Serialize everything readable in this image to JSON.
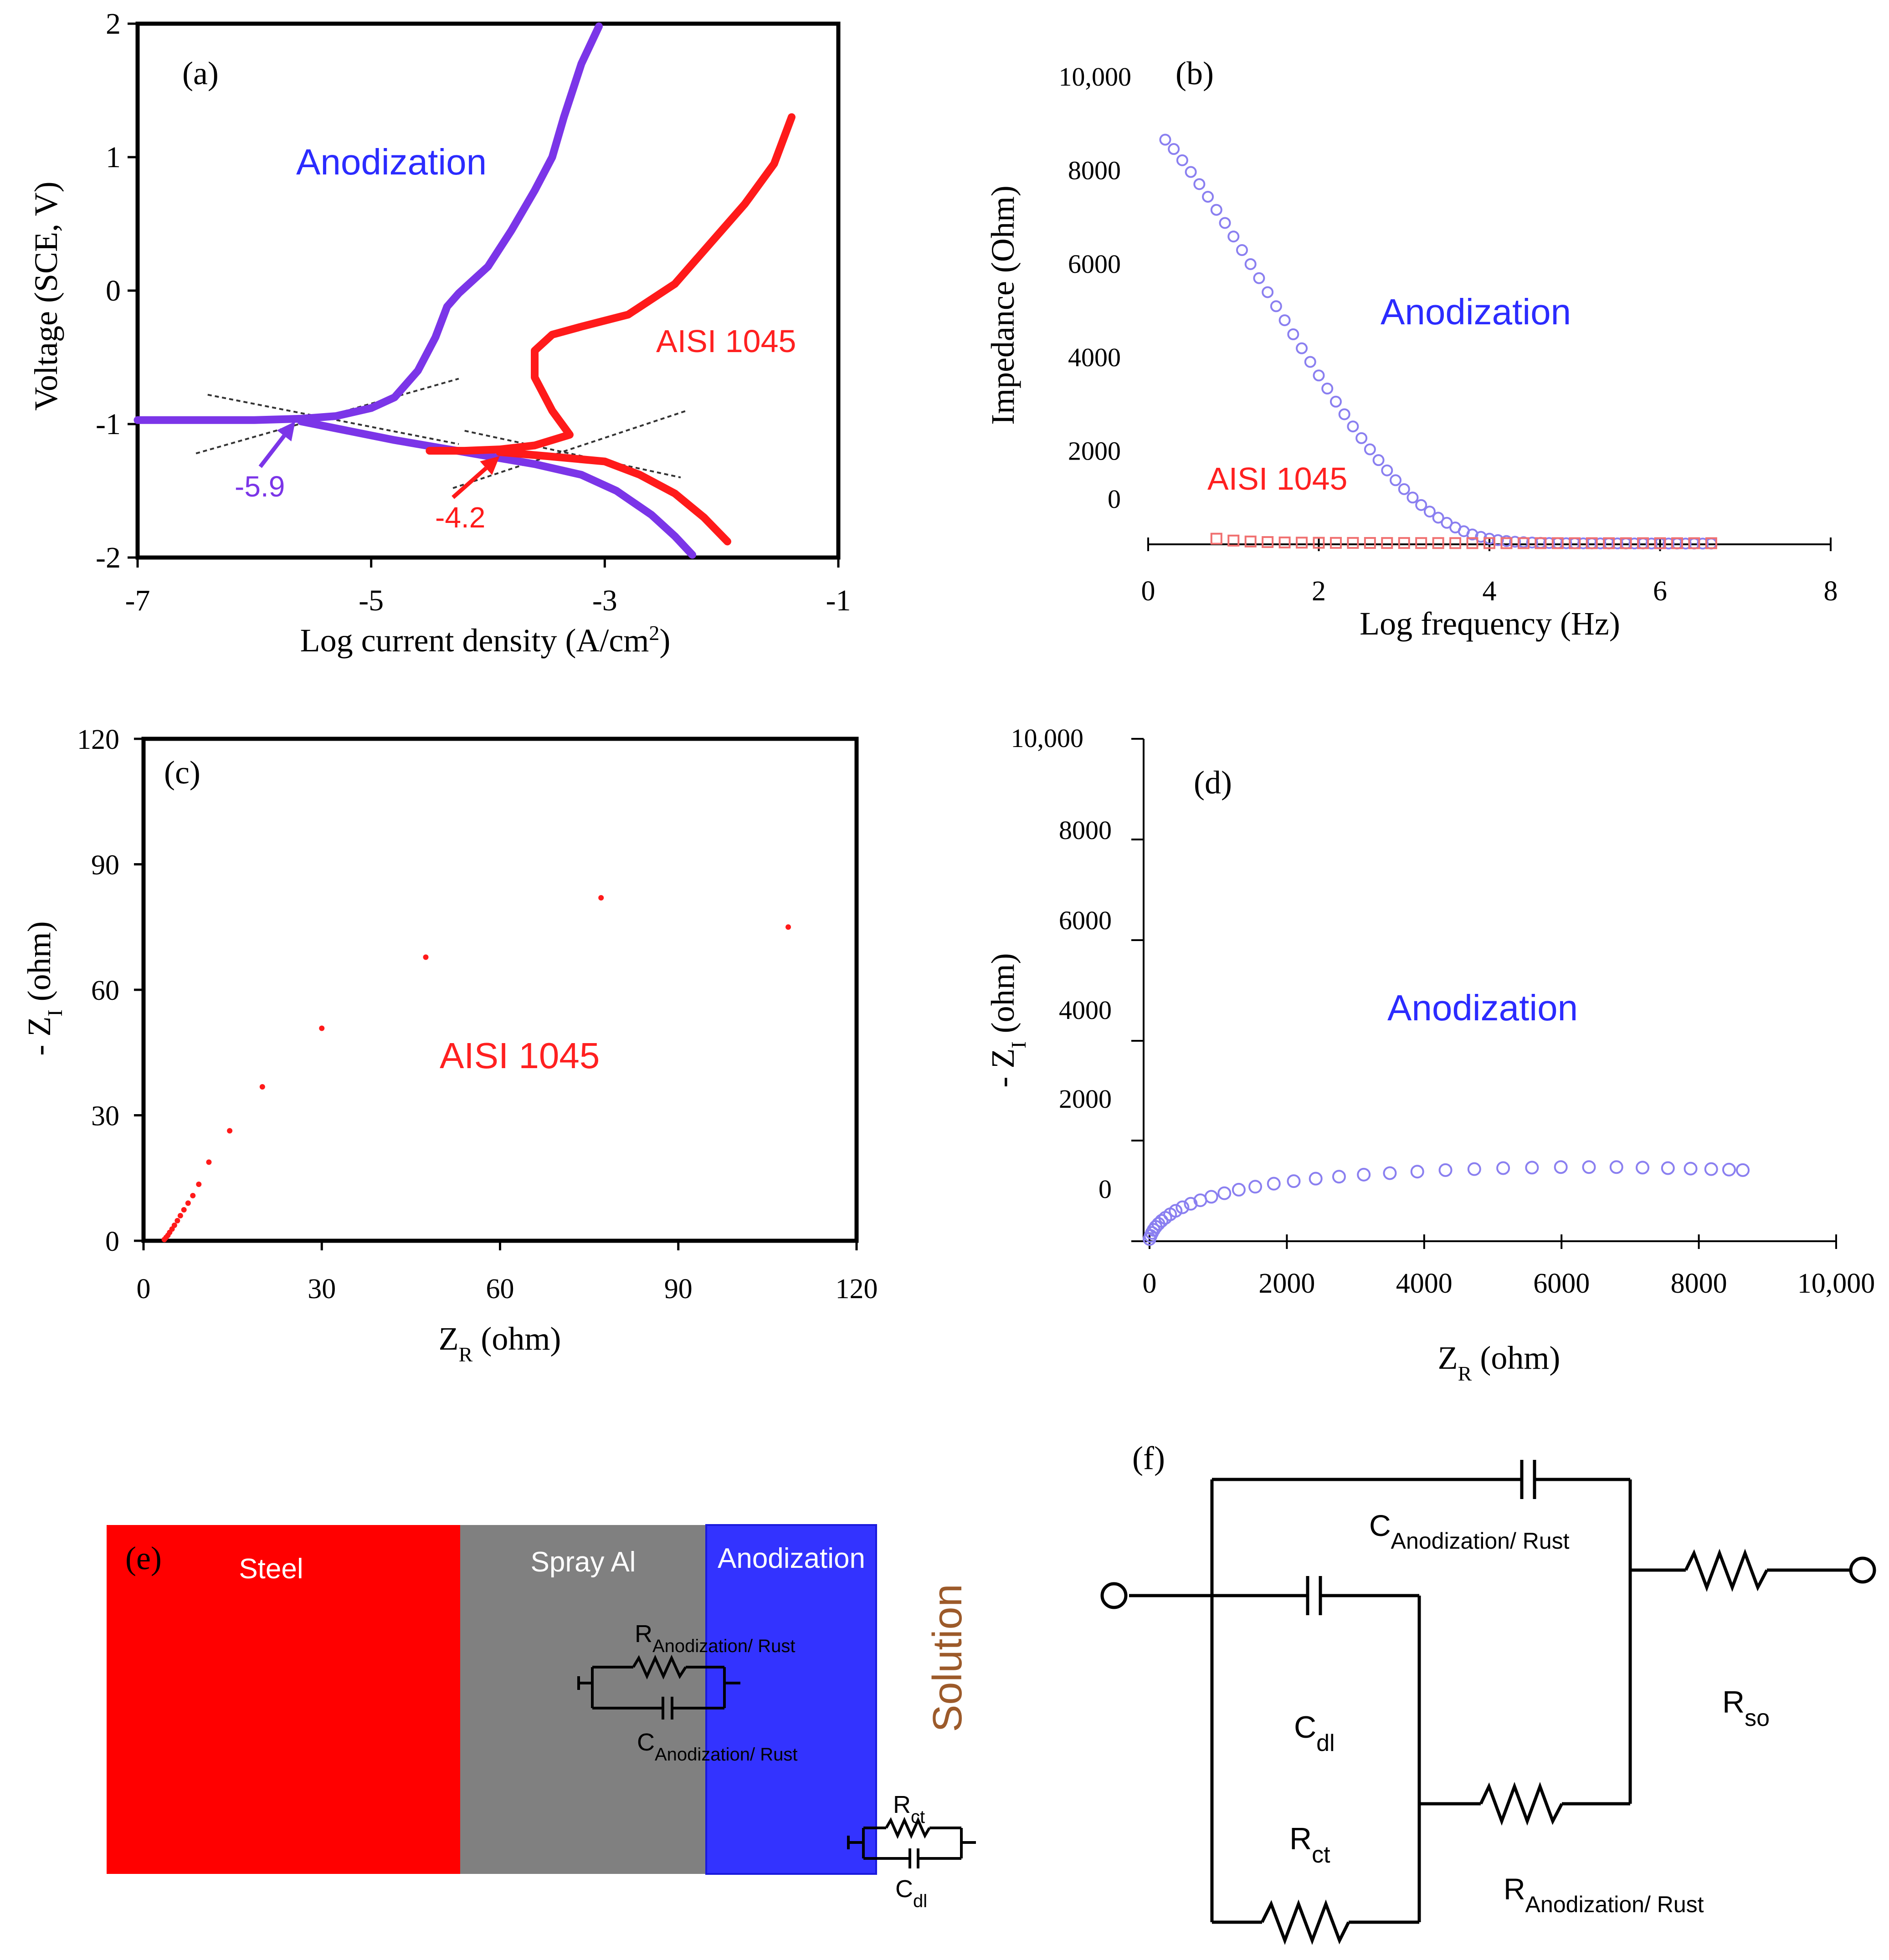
{
  "colors": {
    "anodization_curve": "#7b35e8",
    "aisi_curve": "#ff1a1a",
    "anodization_text": "#2b2bff",
    "aisi_text": "#ff2020",
    "impedance_anod_marker": "#8a7ff0",
    "impedance_aisi_marker": "#f07070",
    "steel": "#ff0000",
    "spray_al": "#808080",
    "anodization_layer": "#3333ff",
    "solution_text": "#9c5a2a"
  },
  "chart_data": [
    {
      "panel": "(a)",
      "type": "line",
      "xlabel": "Log current density (A/cm",
      "xlabel_sup": "2",
      "xlabel_end": ")",
      "ylabel": "Voltage (SCE, V)",
      "xlim": [
        -7,
        -1
      ],
      "ylim": [
        -2,
        2
      ],
      "xticks": [
        "-7",
        "-5",
        "-3",
        "-1"
      ],
      "yticks": [
        "2",
        "1",
        "0",
        "-1",
        "-2"
      ],
      "series": [
        {
          "name": "Anodization",
          "color_key": "anodization_curve",
          "points": [
            [
              -7.0,
              -0.97
            ],
            [
              -6.5,
              -0.97
            ],
            [
              -6.0,
              -0.97
            ],
            [
              -5.6,
              -0.96
            ],
            [
              -5.3,
              -0.94
            ],
            [
              -5.0,
              -0.88
            ],
            [
              -4.8,
              -0.8
            ],
            [
              -4.6,
              -0.6
            ],
            [
              -4.45,
              -0.35
            ],
            [
              -4.35,
              -0.12
            ],
            [
              -4.25,
              -0.02
            ],
            [
              -4.0,
              0.18
            ],
            [
              -3.8,
              0.45
            ],
            [
              -3.6,
              0.75
            ],
            [
              -3.45,
              1.0
            ],
            [
              -3.35,
              1.3
            ],
            [
              -3.2,
              1.7
            ],
            [
              -3.05,
              1.98
            ]
          ]
        },
        {
          "name": "Anodization cathodic",
          "color_key": "anodization_curve",
          "points": [
            [
              -5.6,
              -0.98
            ],
            [
              -5.2,
              -1.05
            ],
            [
              -4.8,
              -1.12
            ],
            [
              -4.4,
              -1.18
            ],
            [
              -4.0,
              -1.24
            ],
            [
              -3.6,
              -1.3
            ],
            [
              -3.2,
              -1.38
            ],
            [
              -2.9,
              -1.5
            ],
            [
              -2.6,
              -1.68
            ],
            [
              -2.4,
              -1.84
            ],
            [
              -2.25,
              -1.98
            ]
          ]
        },
        {
          "name": "AISI 1045",
          "color_key": "aisi_curve",
          "points": [
            [
              -4.5,
              -1.2
            ],
            [
              -4.2,
              -1.2
            ],
            [
              -3.9,
              -1.19
            ],
            [
              -3.6,
              -1.16
            ],
            [
              -3.3,
              -1.08
            ],
            [
              -3.45,
              -0.9
            ],
            [
              -3.6,
              -0.65
            ],
            [
              -3.6,
              -0.45
            ],
            [
              -3.45,
              -0.33
            ],
            [
              -3.2,
              -0.27
            ],
            [
              -2.8,
              -0.18
            ],
            [
              -2.4,
              0.05
            ],
            [
              -2.1,
              0.35
            ],
            [
              -1.8,
              0.65
            ],
            [
              -1.55,
              0.95
            ],
            [
              -1.4,
              1.3
            ]
          ]
        },
        {
          "name": "AISI 1045 cathodic",
          "color_key": "aisi_curve",
          "points": [
            [
              -3.9,
              -1.21
            ],
            [
              -3.5,
              -1.24
            ],
            [
              -3.0,
              -1.28
            ],
            [
              -2.7,
              -1.38
            ],
            [
              -2.4,
              -1.52
            ],
            [
              -2.15,
              -1.7
            ],
            [
              -1.95,
              -1.88
            ]
          ]
        }
      ],
      "tangents": [
        [
          [
            -6.4,
            -0.78
          ],
          [
            -4.25,
            -1.15
          ]
        ],
        [
          [
            -6.5,
            -1.22
          ],
          [
            -4.25,
            -0.66
          ]
        ],
        [
          [
            -4.2,
            -1.05
          ],
          [
            -2.35,
            -1.4
          ]
        ],
        [
          [
            -4.3,
            -1.48
          ],
          [
            -2.3,
            -0.9
          ]
        ]
      ],
      "annotations": [
        {
          "text": "Anodization",
          "color_key": "anodization_text",
          "x": -4.7,
          "y": 1.0
        },
        {
          "text": "AISI 1045",
          "color_key": "aisi_text",
          "x": -2.5,
          "y": -0.4
        },
        {
          "text": "-5.9",
          "color_key": "anodization_curve",
          "x": -6.1,
          "y": -1.48
        },
        {
          "text": "-4.2",
          "color_key": "aisi_text",
          "x": -4.2,
          "y": -1.7
        },
        {
          "text": "(a)",
          "x": -6.55,
          "y": 1.64
        }
      ],
      "arrows": [
        {
          "from": [
            -5.95,
            -1.32
          ],
          "to": [
            -5.65,
            -0.98
          ],
          "color_key": "anodization_curve"
        },
        {
          "from": [
            -4.3,
            -1.55
          ],
          "to": [
            -3.9,
            -1.24
          ],
          "color_key": "aisi_curve"
        }
      ]
    },
    {
      "panel": "(b)",
      "type": "scatter",
      "xlabel": "Log frequency (Hz)",
      "ylabel": "Impedance (Ohm)",
      "xlim": [
        0,
        8
      ],
      "ylim": [
        -300,
        10500
      ],
      "xticks": [
        "0",
        "2",
        "4",
        "6",
        "8"
      ],
      "yticks": [
        "10,000",
        "8000",
        "6000",
        "4000",
        "2000",
        "0"
      ],
      "series": [
        {
          "name": "Anodization",
          "marker": "circle",
          "color_key": "impedance_anod_marker",
          "x": [
            0.2,
            0.3,
            0.4,
            0.5,
            0.6,
            0.7,
            0.8,
            0.9,
            1.0,
            1.1,
            1.2,
            1.3,
            1.4,
            1.5,
            1.6,
            1.7,
            1.8,
            1.9,
            2.0,
            2.1,
            2.2,
            2.3,
            2.4,
            2.5,
            2.6,
            2.7,
            2.8,
            2.9,
            3.0,
            3.1,
            3.2,
            3.3,
            3.4,
            3.5,
            3.6,
            3.7,
            3.8,
            3.9,
            4.0,
            4.1,
            4.2,
            4.3,
            4.4,
            4.5,
            4.6,
            4.7,
            4.8,
            4.9,
            5.0,
            5.1,
            5.2,
            5.3,
            5.4,
            5.5,
            5.6,
            5.7,
            5.8,
            5.9,
            6.0,
            6.1,
            6.2,
            6.3,
            6.4,
            6.5,
            6.6
          ],
          "y": [
            8650,
            8450,
            8210,
            7960,
            7700,
            7430,
            7150,
            6870,
            6580,
            6290,
            5990,
            5690,
            5390,
            5090,
            4790,
            4490,
            4190,
            3900,
            3610,
            3330,
            3050,
            2780,
            2520,
            2270,
            2030,
            1800,
            1580,
            1370,
            1180,
            1000,
            840,
            700,
            570,
            460,
            360,
            280,
            210,
            160,
            120,
            90,
            70,
            55,
            45,
            38,
            32,
            28,
            25,
            23,
            22,
            21,
            20,
            20,
            19,
            19,
            18,
            18,
            18,
            17,
            17,
            17,
            17,
            16,
            16,
            16,
            16
          ]
        },
        {
          "name": "AISI 1045",
          "marker": "square",
          "color_key": "impedance_aisi_marker",
          "x": [
            0.8,
            1.0,
            1.2,
            1.4,
            1.6,
            1.8,
            2.0,
            2.2,
            2.4,
            2.6,
            2.8,
            3.0,
            3.2,
            3.4,
            3.6,
            3.8,
            4.0,
            4.2,
            4.4,
            4.6,
            4.8,
            5.0,
            5.2,
            5.4,
            5.6,
            5.8,
            6.0,
            6.2,
            6.4,
            6.6
          ],
          "y": [
            120,
            80,
            60,
            48,
            40,
            36,
            33,
            31,
            30,
            29,
            28,
            28,
            27,
            27,
            26,
            26,
            26,
            25,
            25,
            25,
            25,
            24,
            24,
            24,
            24,
            24,
            24,
            24,
            24,
            24
          ]
        }
      ],
      "annotations": [
        {
          "text": "Anodization",
          "color_key": "anodization_text"
        },
        {
          "text": "AISI 1045",
          "color_key": "aisi_text"
        },
        {
          "text": "(b)"
        }
      ]
    },
    {
      "panel": "(c)",
      "type": "scatter",
      "xlabel": "Z",
      "xlabel_sub": "R",
      "xlabel_end": " (ohm)",
      "ylabel": "- Z",
      "ylabel_sub": "I",
      "ylabel_end": " (ohm)",
      "xlim": [
        0,
        120
      ],
      "ylim": [
        0,
        120
      ],
      "xticks": [
        "0",
        "30",
        "60",
        "90",
        "120"
      ],
      "yticks": [
        "120",
        "90",
        "60",
        "30",
        "0"
      ],
      "series": [
        {
          "name": "AISI 1045",
          "marker": "dot",
          "color_key": "aisi_curve",
          "x": [
            3.5,
            3.8,
            4.1,
            4.4,
            4.8,
            5.2,
            5.7,
            6.2,
            6.8,
            7.5,
            8.3,
            9.3,
            11.0,
            14.5,
            20.0,
            30.0,
            47.5,
            77.0,
            108.5
          ],
          "y": [
            0.3,
            0.8,
            1.3,
            2.0,
            2.8,
            3.7,
            4.8,
            6.0,
            7.4,
            9.0,
            10.8,
            13.5,
            18.8,
            26.3,
            36.8,
            50.8,
            67.8,
            82.0,
            75.0
          ]
        }
      ],
      "annotations": [
        {
          "text": "AISI 1045",
          "color_key": "aisi_text"
        },
        {
          "text": "(c)"
        }
      ]
    },
    {
      "panel": "(d)",
      "type": "scatter",
      "xlabel": "Z",
      "xlabel_sub": "R",
      "xlabel_end": " (ohm)",
      "ylabel": "- Z",
      "ylabel_sub": "I",
      "ylabel_end": " (ohm)",
      "xlim": [
        -100,
        10000
      ],
      "ylim": [
        -500,
        10000
      ],
      "xticks": [
        "0",
        "2000",
        "4000",
        "6000",
        "8000",
        "10,000"
      ],
      "yticks": [
        "10,000",
        "8000",
        "6000",
        "4000",
        "2000",
        "0"
      ],
      "series": [
        {
          "name": "Anodization",
          "marker": "circle",
          "color_key": "impedance_anod_marker",
          "x": [
            0,
            15,
            35,
            60,
            90,
            130,
            175,
            230,
            300,
            380,
            480,
            600,
            740,
            900,
            1090,
            1300,
            1540,
            1810,
            2100,
            2420,
            2760,
            3120,
            3500,
            3900,
            4310,
            4730,
            5150,
            5570,
            5990,
            6400,
            6800,
            7180,
            7550,
            7880,
            8180,
            8440,
            8640
          ],
          "y": [
            0,
            60,
            120,
            180,
            240,
            300,
            360,
            420,
            490,
            560,
            630,
            700,
            770,
            840,
            910,
            980,
            1040,
            1100,
            1150,
            1200,
            1240,
            1280,
            1310,
            1340,
            1370,
            1390,
            1410,
            1420,
            1430,
            1430,
            1430,
            1420,
            1410,
            1400,
            1390,
            1380,
            1370
          ]
        }
      ],
      "annotations": [
        {
          "text": "Anodization",
          "color_key": "anodization_text"
        },
        {
          "text": "(d)"
        }
      ]
    }
  ],
  "panel_e": {
    "label": "(e)",
    "steel": "Steel",
    "spray_al": "Spray Al",
    "anodization": "Anodization",
    "solution": "Solution",
    "r_anod": "R",
    "r_anod_sub": "Anodization/ Rust",
    "c_anod": "C",
    "c_anod_sub": "Anodization/ Rust",
    "r_ct": "R",
    "r_ct_sub": "ct",
    "c_dl": "C",
    "c_dl_sub": "dl"
  },
  "panel_f": {
    "label": "(f)",
    "c_anod": "C",
    "c_anod_sub": "Anodization/ Rust",
    "c_dl": "C",
    "c_dl_sub": "dl",
    "r_ct": "R",
    "r_ct_sub": "ct",
    "r_so": "R",
    "r_so_sub": "so",
    "r_anod": "R",
    "r_anod_sub": "Anodization/ Rust"
  }
}
